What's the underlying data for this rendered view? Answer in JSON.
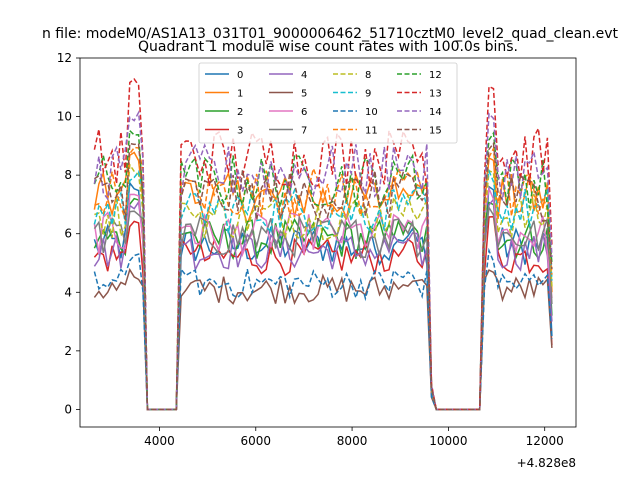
{
  "figure_title": "n file: modeM0/AS1A13_031T01_9000006462_51710cztM0_level2_quad_clean.evt",
  "chart_data": {
    "type": "line",
    "title": "Quadrant 1 module wise count rates with 100.0s bins.",
    "xlabel": "",
    "ylabel": "",
    "x_offset_label": "+4.828e8",
    "xlim": [
      2350,
      12650
    ],
    "ylim": [
      -0.6,
      12
    ],
    "xticks": [
      4000,
      6000,
      8000,
      10000,
      12000
    ],
    "xtick_labels": [
      "4000",
      "6000",
      "8000",
      "10000",
      "12000"
    ],
    "yticks": [
      0,
      2,
      4,
      6,
      8,
      10,
      12
    ],
    "ytick_labels": [
      "0",
      "2",
      "4",
      "6",
      "8",
      "10",
      "12"
    ],
    "legend_position": "top-center",
    "segments": [
      {
        "start": 2650,
        "end": 3750,
        "bins": 12
      },
      {
        "start": 3750,
        "end": 4450,
        "bins": 7,
        "gap": true
      },
      {
        "start": 4450,
        "end": 9650,
        "bins": 53
      },
      {
        "start": 9650,
        "end": 9850,
        "bins": 2,
        "edge": true
      },
      {
        "start": 9850,
        "end": 10750,
        "bins": 9,
        "gap": true
      },
      {
        "start": 10750,
        "end": 12150,
        "bins": 15
      }
    ],
    "series": [
      {
        "name": "0",
        "color": "#1f77b4",
        "dash": "solid",
        "level": 5.6,
        "peak": 7.6,
        "end": 2.5
      },
      {
        "name": "1",
        "color": "#ff7f0e",
        "dash": "solid",
        "level": 7.2,
        "peak": 8.6,
        "end": 4.0
      },
      {
        "name": "2",
        "color": "#2ca02c",
        "dash": "solid",
        "level": 5.8,
        "peak": 7.2,
        "end": 3.2
      },
      {
        "name": "3",
        "color": "#d62728",
        "dash": "solid",
        "level": 5.2,
        "peak": 6.4,
        "end": 2.2
      },
      {
        "name": "4",
        "color": "#9467bd",
        "dash": "solid",
        "level": 5.4,
        "peak": 7.0,
        "end": 3.0
      },
      {
        "name": "5",
        "color": "#8c564b",
        "dash": "solid",
        "level": 4.1,
        "peak": 4.6,
        "end": 2.1
      },
      {
        "name": "6",
        "color": "#e377c2",
        "dash": "solid",
        "level": 6.0,
        "peak": 7.4,
        "end": 3.8
      },
      {
        "name": "7",
        "color": "#7f7f7f",
        "dash": "solid",
        "level": 5.9,
        "peak": 6.8,
        "end": 3.6
      },
      {
        "name": "8",
        "color": "#bcbd22",
        "dash": "dashed",
        "level": 6.6,
        "peak": 8.2,
        "end": 4.2
      },
      {
        "name": "9",
        "color": "#17becf",
        "dash": "dashed",
        "level": 6.8,
        "peak": 8.0,
        "end": 4.4
      },
      {
        "name": "10",
        "color": "#1f77b4",
        "dash": "dashed",
        "level": 4.3,
        "peak": 5.2,
        "end": 2.4
      },
      {
        "name": "11",
        "color": "#ff7f0e",
        "dash": "dashed",
        "level": 7.4,
        "peak": 8.8,
        "end": 4.6
      },
      {
        "name": "12",
        "color": "#2ca02c",
        "dash": "dashed",
        "level": 7.8,
        "peak": 9.4,
        "end": 5.0
      },
      {
        "name": "13",
        "color": "#d62728",
        "dash": "dashed",
        "level": 8.6,
        "peak": 11.1,
        "end": 5.6
      },
      {
        "name": "14",
        "color": "#9467bd",
        "dash": "dashed",
        "level": 8.1,
        "peak": 10.0,
        "end": 5.2
      },
      {
        "name": "15",
        "color": "#8c564b",
        "dash": "dashed",
        "level": 7.3,
        "peak": 9.0,
        "end": 4.8
      }
    ]
  }
}
